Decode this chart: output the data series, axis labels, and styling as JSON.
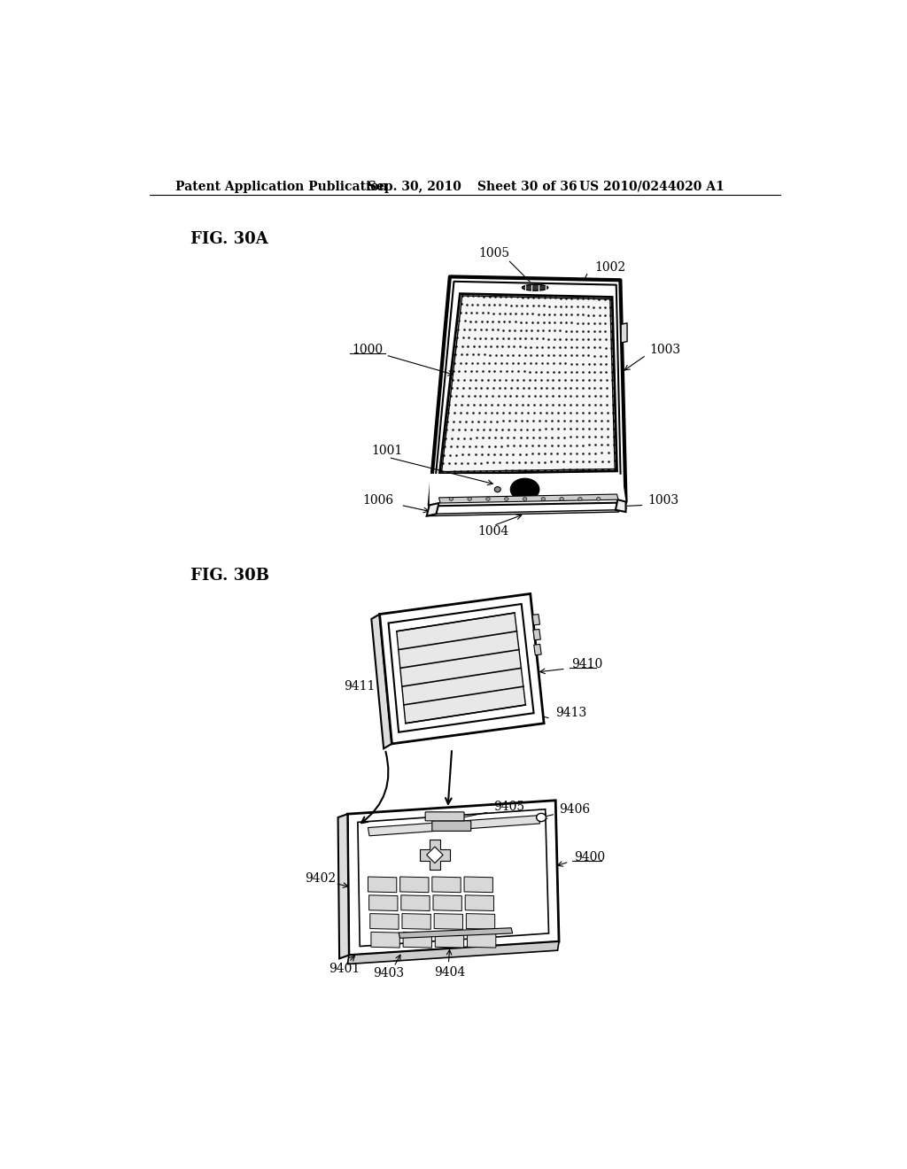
{
  "bg_color": "#ffffff",
  "header_text": "Patent Application Publication",
  "header_date": "Sep. 30, 2010",
  "header_sheet": "Sheet 30 of 36",
  "header_patent": "US 2010/0244020 A1",
  "fig30a_label": "FIG. 30A",
  "fig30b_label": "FIG. 30B",
  "font_size_header": 10,
  "font_size_fig": 13,
  "font_size_ref": 10
}
